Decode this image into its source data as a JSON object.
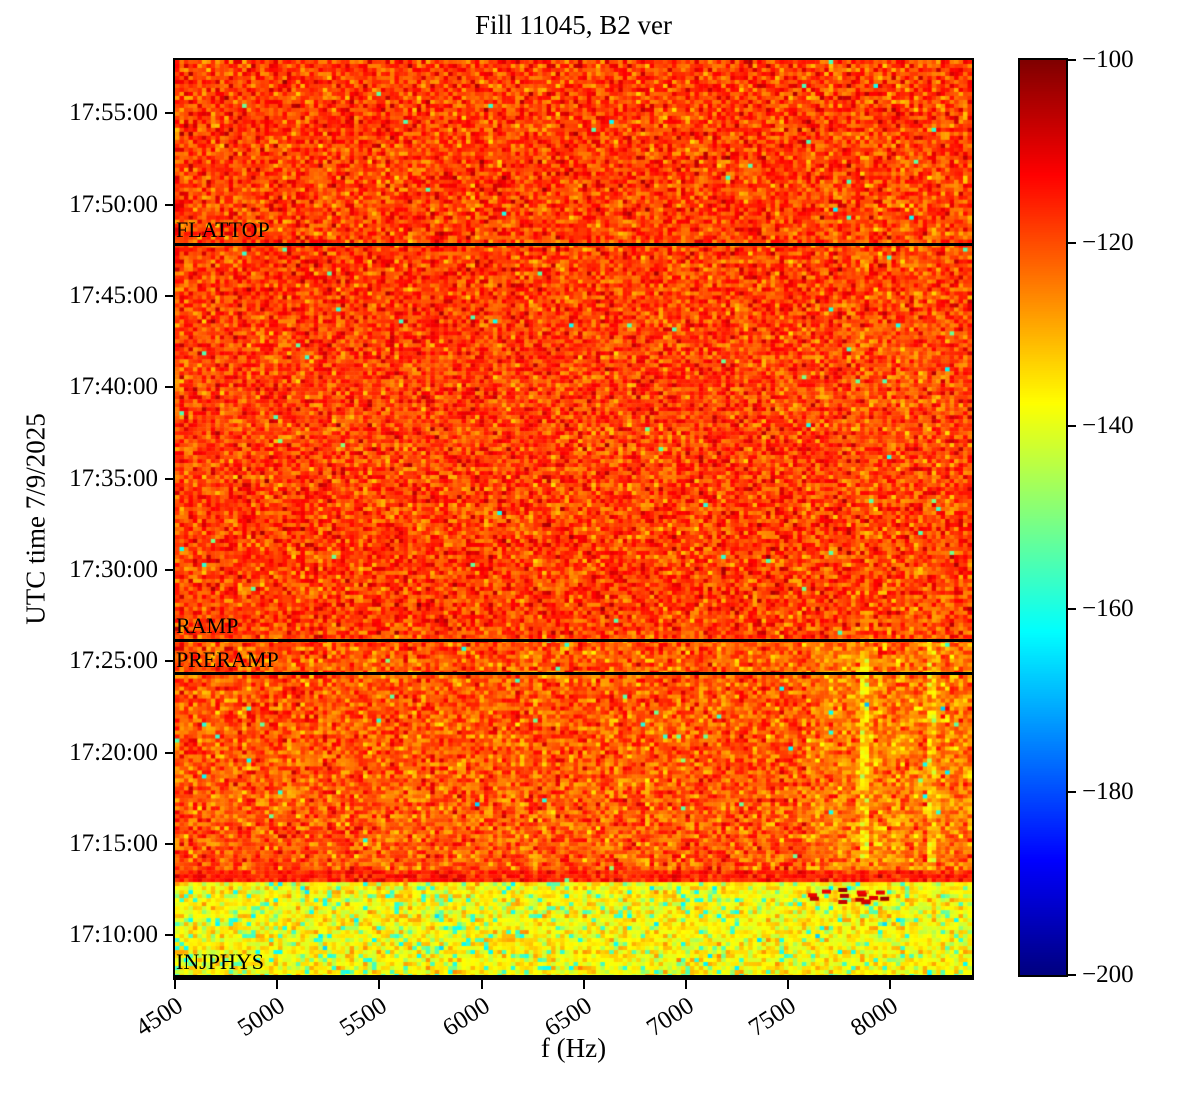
{
  "chart_data": {
    "type": "heatmap",
    "title": "Fill 11045, B2 ver",
    "xlabel": "f (Hz)",
    "ylabel": "UTC time 7/9/2025",
    "grid": false,
    "x_range_hz": [
      4500,
      8400
    ],
    "x_ticks": [
      {
        "value": 4500,
        "label": "4500"
      },
      {
        "value": 5000,
        "label": "5000"
      },
      {
        "value": 5500,
        "label": "5500"
      },
      {
        "value": 6000,
        "label": "6000"
      },
      {
        "value": 6500,
        "label": "6500"
      },
      {
        "value": 7000,
        "label": "7000"
      },
      {
        "value": 7500,
        "label": "7500"
      },
      {
        "value": 8000,
        "label": "8000"
      }
    ],
    "y_time_range": [
      "17:07:40",
      "17:57:55"
    ],
    "y_ticks": [
      {
        "time": "17:55:00",
        "label": "17:55:00"
      },
      {
        "time": "17:50:00",
        "label": "17:50:00"
      },
      {
        "time": "17:45:00",
        "label": "17:45:00"
      },
      {
        "time": "17:40:00",
        "label": "17:40:00"
      },
      {
        "time": "17:35:00",
        "label": "17:35:00"
      },
      {
        "time": "17:30:00",
        "label": "17:30:00"
      },
      {
        "time": "17:25:00",
        "label": "17:25:00"
      },
      {
        "time": "17:20:00",
        "label": "17:20:00"
      },
      {
        "time": "17:15:00",
        "label": "17:15:00"
      },
      {
        "time": "17:10:00",
        "label": "17:10:00"
      }
    ],
    "colorbar": {
      "min": -200,
      "max": -100,
      "colormap": "jet",
      "ticks": [
        {
          "value": -100,
          "label": "−100"
        },
        {
          "value": -120,
          "label": "−120"
        },
        {
          "value": -140,
          "label": "−140"
        },
        {
          "value": -160,
          "label": "−160"
        },
        {
          "value": -180,
          "label": "−180"
        },
        {
          "value": -200,
          "label": "−200"
        }
      ],
      "jet_stops": [
        {
          "pos": 0.0,
          "color": [
            0,
            0,
            128
          ]
        },
        {
          "pos": 0.125,
          "color": [
            0,
            0,
            255
          ]
        },
        {
          "pos": 0.375,
          "color": [
            0,
            255,
            255
          ]
        },
        {
          "pos": 0.625,
          "color": [
            255,
            255,
            0
          ]
        },
        {
          "pos": 0.875,
          "color": [
            255,
            0,
            0
          ]
        },
        {
          "pos": 1.0,
          "color": [
            128,
            0,
            0
          ]
        }
      ]
    },
    "beam_mode_events": [
      {
        "label": "FLATTOP",
        "time": "17:47:50"
      },
      {
        "label": "RAMP",
        "time": "17:26:10"
      },
      {
        "label": "PRERAMP",
        "time": "17:24:20"
      },
      {
        "label": "INJPHYS",
        "time": "17:07:45"
      }
    ],
    "noise_bands": [
      {
        "name": "injphys-plateau",
        "t_start": "17:07:40",
        "t_end": "17:12:50",
        "mean_db": -137.0,
        "sigma_db": 4.5,
        "speckle_db": -156,
        "speckle_sigma_db": 4,
        "speckle_prob": 0.1
      },
      {
        "name": "injection-end-hot-strip",
        "t_start": "17:12:50",
        "t_end": "17:13:30",
        "mean_db": -115.5,
        "sigma_db": 3.5,
        "speckle_db": -150,
        "speckle_sigma_db": 4,
        "speckle_prob": 0.004
      },
      {
        "name": "preramp-plateau",
        "t_start": "17:13:30",
        "t_end": "17:26:10",
        "mean_db": -121.0,
        "sigma_db": 5.5,
        "speckle_db": -156,
        "speckle_sigma_db": 4,
        "speckle_prob": 0.004
      },
      {
        "name": "ramp-and-flattop",
        "t_start": "17:26:10",
        "t_end": "17:57:55",
        "mean_db": -118.5,
        "sigma_db": 5.5,
        "speckle_db": -156,
        "speckle_sigma_db": 4,
        "speckle_prob": 0.003
      }
    ],
    "features": [
      {
        "name": "dark-patch-preramp-high-f",
        "kind": "offset",
        "f_start": 7600,
        "f_end": 8400,
        "t_start": "17:13:30",
        "t_end": "17:26:10",
        "delta_db": -3.5
      },
      {
        "name": "dark-line-7880",
        "kind": "offset",
        "f_start": 7860,
        "f_end": 7905,
        "t_start": "17:14:00",
        "t_end": "17:25:40",
        "delta_db": -9
      },
      {
        "name": "dark-line-8200",
        "kind": "offset",
        "f_start": 8180,
        "f_end": 8225,
        "t_start": "17:13:40",
        "t_end": "17:26:10",
        "delta_db": -7
      },
      {
        "name": "faint-dark-column-high-f",
        "kind": "offset",
        "f_start": 7800,
        "f_end": 8300,
        "t_start": "17:26:10",
        "t_end": "17:57:55",
        "delta_db": -1.2
      },
      {
        "name": "hot-blobs-before-ramp",
        "kind": "hot",
        "f_start": 7580,
        "f_end": 7980,
        "t_start": "17:11:45",
        "t_end": "17:12:40",
        "mean_db": -107,
        "count": 14
      }
    ]
  }
}
